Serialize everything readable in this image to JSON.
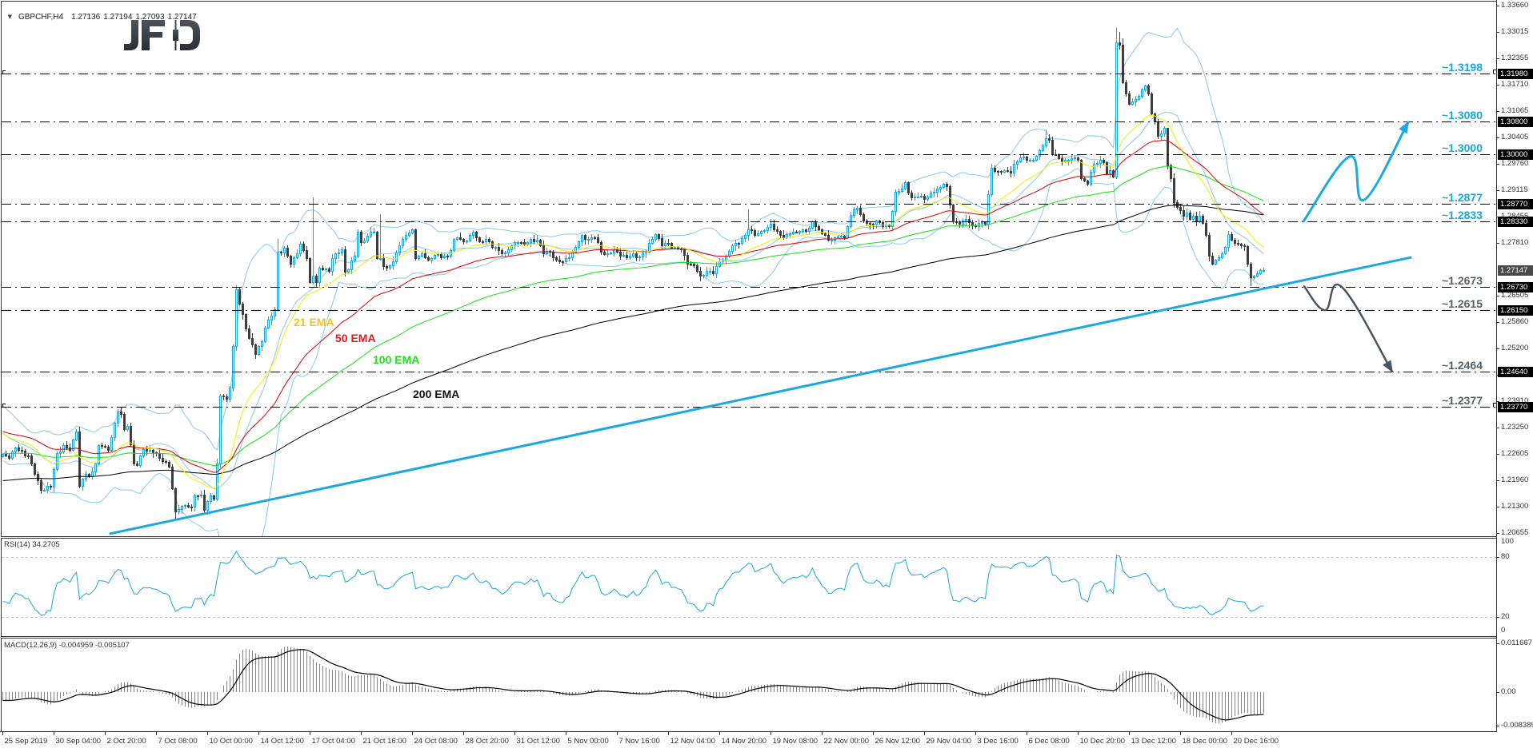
{
  "header": {
    "collapse_icon": "▼",
    "symbol_tf": "GBPCHF,H4",
    "open": "1.27136",
    "high": "1.27194",
    "low": "1.27093",
    "close": "1.27147"
  },
  "logo": {
    "text": "JFD"
  },
  "colors": {
    "bull": "#1aa6d6",
    "bear": "#3d3d3d",
    "bollinger": "#87c9ef",
    "ema21": "#eeee00",
    "ema50": "#dd0000",
    "ema100": "#14e014",
    "ema200": "#000000",
    "trendline": "#1ba9e0",
    "bull_scenario": "#1ba9e0",
    "bear_scenario": "#4b5560",
    "level_blue": "#1aa7d8",
    "level_gray": "#566069",
    "level_line": "#000000",
    "rsi_line": "#1aa6d6",
    "rsi_levels": "#c4c4c4",
    "macd_hist": "#1aa6d6",
    "macd_signal": "#000000",
    "frame": "#333333",
    "logo_top": "#4d535b",
    "logo_bottom": "#2b2f35"
  },
  "ema_labels": [
    {
      "text": "21 EMA",
      "color": "#f5c21b"
    },
    {
      "text": "50 EMA",
      "color": "#e3191b"
    },
    {
      "text": "100 EMA",
      "color": "#1ee21e"
    },
    {
      "text": "200 EMA",
      "color": "#111111"
    }
  ],
  "price_axis": {
    "max": 1.3366,
    "min": 1.20655,
    "ticks": [
      "1.33660",
      "1.33015",
      "1.32355",
      "1.31710",
      "1.31065",
      "1.30405",
      "1.29760",
      "1.29115",
      "1.28455",
      "1.27810",
      "1.26505",
      "1.25860",
      "1.25200",
      "1.24555",
      "1.23910",
      "1.23250",
      "1.22605",
      "1.21960",
      "1.21300",
      "1.20655"
    ],
    "current_price_tag": "1.27147"
  },
  "levels": [
    {
      "label": "~1.3198",
      "tag": "1.31980",
      "tone": "blue",
      "end_marks": true
    },
    {
      "label": "~1.3080",
      "tag": "1.30800",
      "tone": "blue"
    },
    {
      "label": "~1.3000",
      "tag": "1.30000",
      "tone": "blue"
    },
    {
      "label": "~1.2877",
      "tag": "1.28770",
      "tone": "blue"
    },
    {
      "label": "~1.2833",
      "tag": "1.28330",
      "tone": "blue"
    },
    {
      "label": "~1.2673",
      "tag": "1.26730",
      "tone": "gray"
    },
    {
      "label": "~1.2615",
      "tag": "1.26150",
      "tone": "gray"
    },
    {
      "label": "~1.2464",
      "tag": "1.24640",
      "tone": "gray"
    },
    {
      "label": "~1.2377",
      "tag": "1.23770",
      "tone": "gray",
      "end_marks": true
    }
  ],
  "rsi_panel": {
    "title": "RSI(14) 34.2705",
    "axis": [
      "100",
      "80",
      "20",
      "0"
    ]
  },
  "macd_panel": {
    "title": "MACD(12,26,9) -0.004959 -0.005107",
    "axis": [
      "0.011667",
      "0.00",
      "-0.008389"
    ]
  },
  "time_axis": {
    "bars_per_label": 16,
    "labels": [
      "25 Sep 2019",
      "30 Sep 04:00",
      "2 Oct 20:00",
      "7 Oct 08:00",
      "10 Oct 00:00",
      "14 Oct 12:00",
      "17 Oct 04:00",
      "21 Oct 16:00",
      "24 Oct 08:00",
      "28 Oct 20:00",
      "31 Oct 12:00",
      "5 Nov 00:00",
      "7 Nov 16:00",
      "12 Nov 04:00",
      "14 Nov 20:00",
      "19 Nov 08:00",
      "22 Nov 00:00",
      "26 Nov 12:00",
      "29 Nov 04:00",
      "3 Dec 16:00",
      "6 Dec 08:00",
      "10 Dec 20:00",
      "13 Dec 12:00",
      "18 Dec 00:00",
      "20 Dec 16:00"
    ]
  },
  "chart_data": {
    "type": "candlestick",
    "title": "GBPCHF,H4",
    "timeframe": "H4",
    "xlabel": "",
    "ylabel": "",
    "ylim": [
      1.20655,
      1.3366
    ],
    "bar_count": 395,
    "first_open": 1.2255,
    "last_ohlc": {
      "open": 1.27136,
      "high": 1.27194,
      "low": 1.27093,
      "close": 1.27147
    },
    "close_keyframes": [
      [
        0,
        1.226
      ],
      [
        2,
        1.225
      ],
      [
        4,
        1.2276
      ],
      [
        6,
        1.2268
      ],
      [
        8,
        1.2257
      ],
      [
        10,
        1.2211
      ],
      [
        12,
        1.2172
      ],
      [
        14,
        1.2182
      ],
      [
        15,
        1.218
      ],
      [
        17,
        1.2263
      ],
      [
        19,
        1.2282
      ],
      [
        21,
        1.227
      ],
      [
        23,
        1.2316
      ],
      [
        24,
        1.2182
      ],
      [
        26,
        1.2211
      ],
      [
        27,
        1.2205
      ],
      [
        29,
        1.2237
      ],
      [
        30,
        1.2282
      ],
      [
        31,
        1.228
      ],
      [
        33,
        1.227
      ],
      [
        34,
        1.2302
      ],
      [
        36,
        1.2365
      ],
      [
        37,
        1.236
      ],
      [
        38,
        1.2322
      ],
      [
        39,
        1.233
      ],
      [
        41,
        1.2237
      ],
      [
        42,
        1.2233
      ],
      [
        44,
        1.2272
      ],
      [
        46,
        1.227
      ],
      [
        48,
        1.2262
      ],
      [
        50,
        1.2243
      ],
      [
        52,
        1.223
      ],
      [
        54,
        1.2119
      ],
      [
        55,
        1.2125
      ],
      [
        57,
        1.2134
      ],
      [
        59,
        1.213
      ],
      [
        60,
        1.2158
      ],
      [
        62,
        1.216
      ],
      [
        63,
        1.2122
      ],
      [
        65,
        1.2158
      ],
      [
        66,
        1.215
      ],
      [
        67,
        1.2237
      ],
      [
        68,
        1.2404
      ],
      [
        70,
        1.2397
      ],
      [
        71,
        1.2424
      ],
      [
        72,
        1.2527
      ],
      [
        73,
        1.2666
      ],
      [
        74,
        1.2631
      ],
      [
        75,
        1.2605
      ],
      [
        77,
        1.2546
      ],
      [
        79,
        1.2507
      ],
      [
        81,
        1.2538
      ],
      [
        82,
        1.2572
      ],
      [
        83,
        1.2592
      ],
      [
        85,
        1.2617
      ],
      [
        86,
        1.2759
      ],
      [
        88,
        1.2769
      ],
      [
        90,
        1.273
      ],
      [
        92,
        1.2755
      ],
      [
        93,
        1.2779
      ],
      [
        95,
        1.2743
      ],
      [
        96,
        1.2684
      ],
      [
        97,
        1.27
      ],
      [
        98,
        1.2684
      ],
      [
        99,
        1.272
      ],
      [
        102,
        1.2712
      ],
      [
        103,
        1.2743
      ],
      [
        106,
        1.2765
      ],
      [
        107,
        1.271
      ],
      [
        110,
        1.2749
      ],
      [
        111,
        1.2808
      ],
      [
        112,
        1.2783
      ],
      [
        115,
        1.2808
      ],
      [
        116,
        1.2808
      ],
      [
        117,
        1.2743
      ],
      [
        118,
        1.2743
      ],
      [
        119,
        1.2724
      ],
      [
        120,
        1.272
      ],
      [
        122,
        1.2735
      ],
      [
        124,
        1.2775
      ],
      [
        126,
        1.28
      ],
      [
        128,
        1.2814
      ],
      [
        129,
        1.2743
      ],
      [
        131,
        1.2755
      ],
      [
        133,
        1.274
      ],
      [
        135,
        1.2752
      ],
      [
        137,
        1.2745
      ],
      [
        139,
        1.2749
      ],
      [
        141,
        1.279
      ],
      [
        142,
        1.2795
      ],
      [
        144,
        1.2785
      ],
      [
        146,
        1.28
      ],
      [
        147,
        1.2808
      ],
      [
        149,
        1.2785
      ],
      [
        151,
        1.279
      ],
      [
        153,
        1.277
      ],
      [
        155,
        1.2763
      ],
      [
        157,
        1.2758
      ],
      [
        159,
        1.2775
      ],
      [
        161,
        1.2783
      ],
      [
        163,
        1.2778
      ],
      [
        165,
        1.279
      ],
      [
        167,
        1.2789
      ],
      [
        169,
        1.2755
      ],
      [
        171,
        1.276
      ],
      [
        173,
        1.274
      ],
      [
        175,
        1.2735
      ],
      [
        177,
        1.2745
      ],
      [
        179,
        1.277
      ],
      [
        181,
        1.28
      ],
      [
        183,
        1.279
      ],
      [
        185,
        1.2795
      ],
      [
        187,
        1.276
      ],
      [
        189,
        1.2755
      ],
      [
        191,
        1.2765
      ],
      [
        193,
        1.275
      ],
      [
        195,
        1.2745
      ],
      [
        197,
        1.2755
      ],
      [
        199,
        1.2748
      ],
      [
        201,
        1.276
      ],
      [
        203,
        1.279
      ],
      [
        204,
        1.2802
      ],
      [
        206,
        1.2775
      ],
      [
        208,
        1.278
      ],
      [
        210,
        1.277
      ],
      [
        212,
        1.2765
      ],
      [
        214,
        1.273
      ],
      [
        216,
        1.2725
      ],
      [
        218,
        1.27
      ],
      [
        220,
        1.2712
      ],
      [
        222,
        1.2705
      ],
      [
        224,
        1.2735
      ],
      [
        226,
        1.275
      ],
      [
        228,
        1.2775
      ],
      [
        230,
        1.278
      ],
      [
        232,
        1.28
      ],
      [
        233,
        1.2814
      ],
      [
        235,
        1.28
      ],
      [
        237,
        1.281
      ],
      [
        239,
        1.282
      ],
      [
        240,
        1.2828
      ],
      [
        242,
        1.281
      ],
      [
        244,
        1.2795
      ],
      [
        246,
        1.2805
      ],
      [
        248,
        1.2808
      ],
      [
        250,
        1.2814
      ],
      [
        252,
        1.2818
      ],
      [
        253,
        1.2834
      ],
      [
        255,
        1.2815
      ],
      [
        257,
        1.28
      ],
      [
        258,
        1.2789
      ],
      [
        260,
        1.2795
      ],
      [
        262,
        1.2798
      ],
      [
        263,
        1.2795
      ],
      [
        265,
        1.285
      ],
      [
        267,
        1.2868
      ],
      [
        269,
        1.2835
      ],
      [
        271,
        1.2828
      ],
      [
        273,
        1.2835
      ],
      [
        275,
        1.2822
      ],
      [
        277,
        1.2822
      ],
      [
        279,
        1.2907
      ],
      [
        281,
        1.2915
      ],
      [
        282,
        1.293
      ],
      [
        284,
        1.2893
      ],
      [
        286,
        1.2895
      ],
      [
        288,
        1.289
      ],
      [
        290,
        1.2905
      ],
      [
        292,
        1.2915
      ],
      [
        294,
        1.2926
      ],
      [
        295,
        1.292
      ],
      [
        297,
        1.2834
      ],
      [
        299,
        1.2828
      ],
      [
        301,
        1.284
      ],
      [
        303,
        1.2825
      ],
      [
        305,
        1.283
      ],
      [
        307,
        1.2828
      ],
      [
        308,
        1.29
      ],
      [
        309,
        1.2966
      ],
      [
        311,
        1.2958
      ],
      [
        313,
        1.296
      ],
      [
        315,
        1.2955
      ],
      [
        316,
        1.2975
      ],
      [
        318,
        1.2992
      ],
      [
        320,
        1.2985
      ],
      [
        322,
        1.2986
      ],
      [
        324,
        1.301
      ],
      [
        326,
        1.3039
      ],
      [
        327,
        1.3035
      ],
      [
        328,
        1.3
      ],
      [
        330,
        1.299
      ],
      [
        332,
        1.2986
      ],
      [
        334,
        1.299
      ],
      [
        336,
        1.2985
      ],
      [
        337,
        1.294
      ],
      [
        339,
        1.2926
      ],
      [
        341,
        1.2975
      ],
      [
        343,
        1.2986
      ],
      [
        344,
        1.298
      ],
      [
        345,
        1.2952
      ],
      [
        346,
        1.296
      ],
      [
        347,
        1.2945
      ],
      [
        348,
        1.3275
      ],
      [
        349,
        1.327
      ],
      [
        350,
        1.3177
      ],
      [
        351,
        1.315
      ],
      [
        352,
        1.3124
      ],
      [
        353,
        1.313
      ],
      [
        355,
        1.3143
      ],
      [
        356,
        1.316
      ],
      [
        357,
        1.3169
      ],
      [
        358,
        1.315
      ],
      [
        359,
        1.31
      ],
      [
        360,
        1.308
      ],
      [
        361,
        1.3045
      ],
      [
        362,
        1.305
      ],
      [
        363,
        1.3064
      ],
      [
        364,
        1.2972
      ],
      [
        365,
        1.294
      ],
      [
        366,
        1.2881
      ],
      [
        367,
        1.287
      ],
      [
        368,
        1.2862
      ],
      [
        369,
        1.2848
      ],
      [
        370,
        1.2855
      ],
      [
        371,
        1.284
      ],
      [
        372,
        1.2848
      ],
      [
        373,
        1.2835
      ],
      [
        374,
        1.2848
      ],
      [
        375,
        1.283
      ],
      [
        376,
        1.28
      ],
      [
        377,
        1.2749
      ],
      [
        378,
        1.273
      ],
      [
        379,
        1.274
      ],
      [
        380,
        1.2745
      ],
      [
        381,
        1.2755
      ],
      [
        382,
        1.277
      ],
      [
        383,
        1.2802
      ],
      [
        384,
        1.2789
      ],
      [
        385,
        1.278
      ],
      [
        386,
        1.2778
      ],
      [
        387,
        1.2775
      ],
      [
        388,
        1.2772
      ],
      [
        389,
        1.273
      ],
      [
        390,
        1.2696
      ],
      [
        391,
        1.27
      ],
      [
        392,
        1.2706
      ],
      [
        393,
        1.27136
      ],
      [
        394,
        1.27147
      ]
    ],
    "wick_overrides": [
      [
        54,
        null,
        1.2099
      ],
      [
        73,
        1.2676,
        null
      ],
      [
        86,
        1.279,
        null
      ],
      [
        97,
        1.2893,
        1.268
      ],
      [
        118,
        1.2852,
        null
      ],
      [
        233,
        1.2864,
        null
      ],
      [
        326,
        1.306,
        null
      ],
      [
        348,
        1.3311,
        1.294
      ],
      [
        349,
        1.33,
        null
      ],
      [
        350,
        1.3285,
        null
      ],
      [
        364,
        1.3,
        null
      ],
      [
        390,
        null,
        1.2676
      ],
      [
        394,
        1.27194,
        1.27093
      ]
    ],
    "indicators": {
      "ema": [
        {
          "name": "21 EMA",
          "period": 21,
          "seed": 1.2316,
          "color_key": "ema21"
        },
        {
          "name": "50 EMA",
          "period": 50,
          "seed": 1.2318,
          "color_key": "ema50"
        },
        {
          "name": "100 EMA",
          "period": 100,
          "seed": 1.2262,
          "color_key": "ema100"
        },
        {
          "name": "200 EMA",
          "period": 200,
          "seed": 1.2194,
          "color_key": "ema200"
        }
      ],
      "bollinger": {
        "period": 20,
        "deviation": 2,
        "seed_closes": [
          1.2368,
          1.236,
          1.2355,
          1.235,
          1.2342,
          1.2338,
          1.2333,
          1.2326,
          1.232,
          1.2316,
          1.2308,
          1.2302,
          1.2296,
          1.229,
          1.2284,
          1.2278,
          1.2272,
          1.2266,
          1.2262
        ]
      },
      "rsi": {
        "period": 14,
        "seed_prev_close": 1.2262,
        "seed_avg_gain": 0.00045,
        "seed_avg_loss": 0.0008,
        "last_value": 34.2705,
        "levels": [
          80,
          20
        ],
        "ylim": [
          0,
          100
        ]
      },
      "macd": {
        "fast": 12,
        "slow": 26,
        "signal": 9,
        "seed_fast": 1.2268,
        "seed_slow": 1.229,
        "seed_signal": -0.002,
        "last_main": -0.004959,
        "last_signal": -0.005107,
        "ylim": [
          -0.008389,
          0.011667
        ]
      }
    },
    "trendline": {
      "start": {
        "bar": 33.6,
        "price": 1.2064
      },
      "end": {
        "bar": 439.9,
        "price": 1.2745
      }
    },
    "scenarios": {
      "bullish": [
        [
          406.4,
          1.2834
        ],
        [
          420.9,
          1.2994
        ],
        [
          425.4,
          1.2887
        ],
        [
          439.1,
          1.3078
        ]
      ],
      "bearish": [
        [
          406.6,
          1.2674
        ],
        [
          413.1,
          1.2615
        ],
        [
          418.4,
          1.2672
        ],
        [
          434.1,
          1.2464
        ]
      ]
    }
  }
}
